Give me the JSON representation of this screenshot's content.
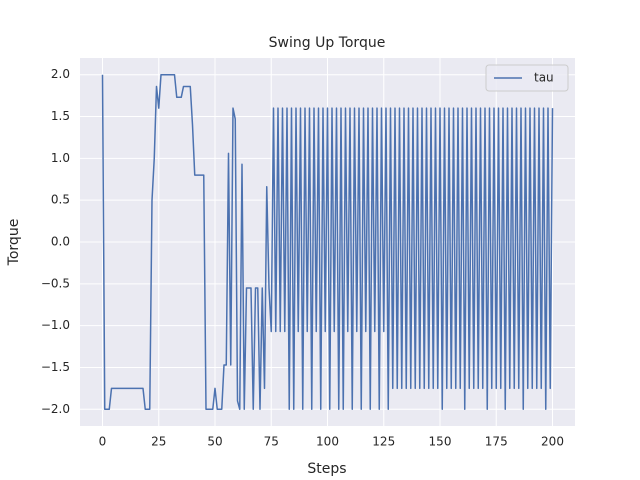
{
  "chart_data": {
    "type": "line",
    "title": "Swing Up Torque",
    "x_label": "Steps",
    "y_label": "Torque",
    "x": [
      0,
      1,
      2,
      3,
      4,
      5,
      6,
      7,
      8,
      9,
      10,
      11,
      12,
      13,
      14,
      15,
      16,
      17,
      18,
      19,
      20,
      21,
      22,
      23,
      24,
      25,
      26,
      27,
      28,
      29,
      30,
      31,
      32,
      33,
      34,
      35,
      36,
      37,
      38,
      39,
      40,
      41,
      42,
      43,
      44,
      45,
      46,
      47,
      48,
      49,
      50,
      51,
      52,
      53,
      54,
      55,
      56,
      57,
      58,
      59,
      60,
      61,
      62,
      63,
      64,
      65,
      66,
      67,
      68,
      69,
      70,
      71,
      72,
      73,
      74,
      75,
      76,
      77,
      78,
      79,
      80,
      81,
      82,
      83,
      84,
      85,
      86,
      87,
      88,
      89,
      90,
      91,
      92,
      93,
      94,
      95,
      96,
      97,
      98,
      99,
      100,
      101,
      102,
      103,
      104,
      105,
      106,
      107,
      108,
      109,
      110,
      111,
      112,
      113,
      114,
      115,
      116,
      117,
      118,
      119,
      120,
      121,
      122,
      123,
      124,
      125,
      126,
      127,
      128,
      129,
      130,
      131,
      132,
      133,
      134,
      135,
      136,
      137,
      138,
      139,
      140,
      141,
      142,
      143,
      144,
      145,
      146,
      147,
      148,
      149,
      150,
      151,
      152,
      153,
      154,
      155,
      156,
      157,
      158,
      159,
      160,
      161,
      162,
      163,
      164,
      165,
      166,
      167,
      168,
      169,
      170,
      171,
      172,
      173,
      174,
      175,
      176,
      177,
      178,
      179,
      180,
      181,
      182,
      183,
      184,
      185,
      186,
      187,
      188,
      189,
      190,
      191,
      192,
      193,
      194,
      195,
      196,
      197,
      198,
      199,
      200
    ],
    "series": [
      {
        "name": "tau",
        "color": "#4c72b0",
        "values": [
          2,
          -2,
          -2,
          -2,
          -1.75,
          -1.75,
          -1.75,
          -1.75,
          -1.75,
          -1.75,
          -1.75,
          -1.75,
          -1.75,
          -1.75,
          -1.75,
          -1.75,
          -1.75,
          -1.75,
          -1.75,
          -2,
          -2,
          -2,
          0.5,
          1.0,
          1.86,
          1.6,
          2,
          2,
          2,
          2,
          2,
          2,
          2,
          1.73,
          1.73,
          1.73,
          1.86,
          1.86,
          1.86,
          1.86,
          1.4,
          0.8,
          0.8,
          0.8,
          0.8,
          0.8,
          -2,
          -2,
          -2,
          -2,
          -1.75,
          -2,
          -2,
          -2,
          -1.47,
          -1.47,
          1.06,
          -1.47,
          1.6,
          1.47,
          -1.9,
          -2,
          0.93,
          -2,
          -0.55,
          -0.55,
          -0.55,
          -2,
          -0.55,
          -0.55,
          -2,
          -0.55,
          -1.75,
          0.66,
          -0.55,
          -1.07,
          1.6,
          -1.07,
          1.6,
          -1.07,
          1.6,
          -1.07,
          1.6,
          -2,
          1.6,
          -2,
          1.6,
          -1.07,
          1.6,
          -2,
          1.6,
          -1.07,
          1.6,
          -2,
          1.6,
          -1.07,
          1.6,
          -2,
          1.6,
          -1.07,
          1.6,
          -2,
          1.6,
          -1.07,
          1.6,
          -2,
          1.6,
          -2,
          1.6,
          -1.07,
          1.6,
          -2,
          1.6,
          -1.07,
          1.6,
          -2,
          1.6,
          -1.07,
          1.6,
          -2,
          1.6,
          -1.07,
          1.6,
          -2,
          1.6,
          -1.07,
          1.6,
          -2,
          1.6,
          -1.75,
          1.6,
          -1.75,
          1.6,
          -1.75,
          1.6,
          -1.75,
          1.6,
          -1.75,
          1.6,
          -1.75,
          1.6,
          -1.75,
          1.6,
          -1.75,
          1.6,
          -1.75,
          1.6,
          -1.75,
          1.6,
          -1.75,
          1.6,
          -2,
          1.6,
          -1.75,
          1.6,
          -1.75,
          1.6,
          -1.75,
          1.6,
          -1.75,
          1.6,
          -2,
          1.6,
          -1.75,
          1.6,
          -1.75,
          1.6,
          -1.75,
          1.6,
          -1.75,
          1.6,
          -2,
          1.6,
          -1.75,
          1.6,
          -1.75,
          1.6,
          -1.75,
          1.6,
          -2,
          1.6,
          -1.75,
          1.6,
          -1.75,
          1.6,
          -1.75,
          1.6,
          -2,
          1.6,
          -1.75,
          1.6,
          -1.75,
          1.6,
          -1.75,
          1.6,
          -1.75,
          1.6,
          -2,
          1.6,
          -1.75,
          1.6
        ]
      }
    ],
    "xlim": [
      -10,
      210
    ],
    "ylim": [
      -2.2,
      2.2
    ],
    "xticks": [
      0,
      25,
      50,
      75,
      100,
      125,
      150,
      175,
      200
    ],
    "yticks": [
      {
        "value": -2,
        "label": "−2.0"
      },
      {
        "value": -1.5,
        "label": "−1.5"
      },
      {
        "value": -1,
        "label": "−1.0"
      },
      {
        "value": -0.5,
        "label": "−0.5"
      },
      {
        "value": 0,
        "label": "0.0"
      },
      {
        "value": 0.5,
        "label": "0.5"
      },
      {
        "value": 1,
        "label": "1.0"
      },
      {
        "value": 1.5,
        "label": "1.5"
      },
      {
        "value": 2,
        "label": "2.0"
      }
    ],
    "grid": true,
    "legend": "upper right"
  }
}
